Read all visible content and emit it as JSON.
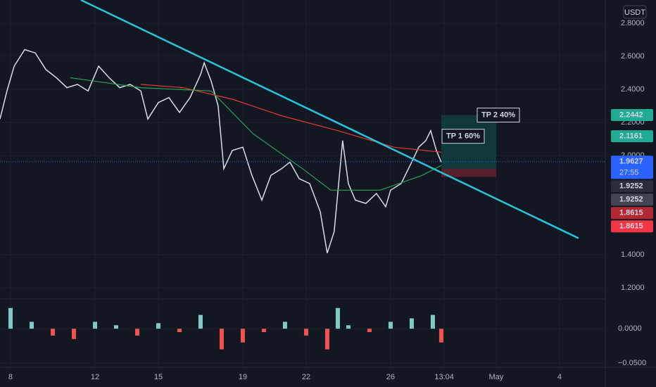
{
  "chart_data": {
    "type": "line",
    "currency": "USDT",
    "countdown": "27:55",
    "xlim": [
      7.5,
      36.17
    ],
    "xticks": [
      8,
      12,
      15,
      19,
      22,
      26,
      {
        "value": 28.54,
        "label": "13:04"
      },
      {
        "value": 31,
        "label": "May"
      },
      {
        "value": 34,
        "label": "4"
      }
    ],
    "ylim": [
      1.132,
      2.94
    ],
    "yticks": [
      {
        "value": 2.8,
        "label": "2.8000"
      },
      {
        "value": 2.6,
        "label": "2.6000"
      },
      {
        "value": 2.4,
        "label": "2.4000"
      },
      {
        "value": 2.2,
        "label": "2.2000"
      },
      {
        "value": 2.0,
        "label": "2.0000"
      },
      {
        "value": 1.4,
        "label": "1.4000"
      },
      {
        "value": 1.2,
        "label": "1.2000"
      }
    ],
    "grid": true,
    "series": [
      {
        "color": "#d8dde6",
        "x": [
          7.5,
          7.83,
          8.17,
          8.67,
          9.17,
          9.67,
          10.17,
          10.67,
          11.17,
          11.67,
          12.17,
          12.67,
          13.17,
          13.67,
          14.17,
          14.5,
          15,
          15.5,
          16,
          16.5,
          17,
          17.17,
          17.5,
          17.83,
          18.1,
          18.5,
          19,
          19.43,
          19.9,
          20.33,
          20.83,
          21.23,
          21.67,
          22.17,
          22.67,
          23,
          23.33,
          23.73,
          24,
          24.33,
          24.83,
          25.33,
          25.77,
          26,
          26.5,
          27,
          27.33,
          27.67,
          27.9,
          28.17,
          28.4
        ],
        "values": [
          2.22,
          2.39,
          2.54,
          2.64,
          2.62,
          2.52,
          2.47,
          2.41,
          2.43,
          2.39,
          2.54,
          2.47,
          2.41,
          2.43,
          2.39,
          2.22,
          2.32,
          2.35,
          2.26,
          2.35,
          2.49,
          2.56,
          2.45,
          2.3,
          1.92,
          2.03,
          2.05,
          1.88,
          1.73,
          1.88,
          1.92,
          1.96,
          1.86,
          1.83,
          1.66,
          1.41,
          1.54,
          2.09,
          1.83,
          1.73,
          1.71,
          1.77,
          1.69,
          1.79,
          1.83,
          1.96,
          2.05,
          2.09,
          2.15,
          2.03,
          1.96
        ]
      },
      {
        "color": "#e53935",
        "x": [
          14.17,
          16.17,
          18.5,
          20.83,
          23.5,
          26.17,
          28.4
        ],
        "values": [
          2.43,
          2.41,
          2.34,
          2.24,
          2.15,
          2.05,
          2.02
        ]
      },
      {
        "color": "#2e9e5b",
        "x": [
          10.83,
          14.17,
          17.5,
          19.5,
          21.83,
          23.17,
          25.5,
          27.5,
          28.4
        ],
        "values": [
          2.47,
          2.41,
          2.39,
          2.13,
          1.92,
          1.79,
          1.79,
          1.88,
          1.94
        ]
      }
    ],
    "trendline": {
      "color": "#26c6da",
      "x": [
        11.33,
        34.9
      ],
      "values": [
        2.94,
        1.5
      ]
    },
    "position": {
      "x": [
        28.4,
        31
      ],
      "entry": 1.92,
      "target": 2.2442,
      "stop": 1.87
    },
    "annotations": [
      {
        "text": "TP 2 40%",
        "value": 2.2442
      },
      {
        "text": "TP 1 60%",
        "value": 2.1161
      }
    ],
    "price_labels": [
      {
        "value": 2.2442,
        "color": "#22ab94"
      },
      {
        "value": 2.1161,
        "color": "#22ab94"
      },
      {
        "value": 1.9627,
        "color": "#2962ff"
      },
      {
        "value": 1.9252,
        "color": "#2a2e39"
      },
      {
        "value": 1.9252,
        "color": "#434651"
      },
      {
        "value": 1.8615,
        "color": "#b22833"
      },
      {
        "value": 1.8615,
        "color": "#f23645"
      }
    ],
    "macd": {
      "ylim": [
        -0.056,
        0.043
      ],
      "yticks": [
        {
          "value": 0,
          "label": "0.0000"
        },
        {
          "value": -0.05,
          "label": "−0.0500"
        }
      ],
      "x": [
        8,
        9,
        10,
        11,
        12,
        13,
        14,
        15,
        16,
        17,
        18,
        19,
        20,
        21,
        22,
        23,
        23.5,
        24,
        25,
        26,
        27,
        28,
        28.4
      ],
      "values": [
        0.03,
        0.01,
        -0.01,
        -0.015,
        0.01,
        0.005,
        -0.01,
        0.008,
        -0.005,
        0.02,
        -0.03,
        -0.02,
        -0.005,
        0.01,
        -0.01,
        -0.03,
        0.03,
        0.005,
        -0.005,
        0.01,
        0.015,
        0.02,
        -0.02
      ]
    }
  }
}
